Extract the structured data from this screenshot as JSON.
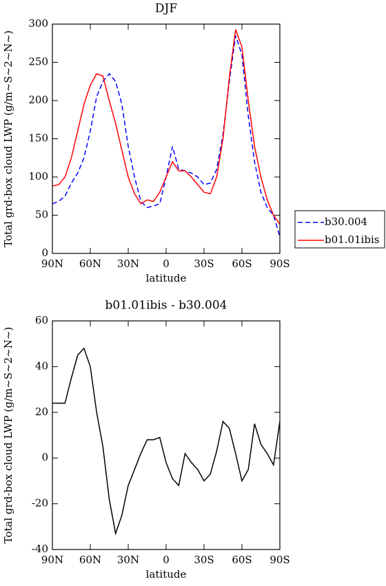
{
  "chart_data": [
    {
      "type": "line",
      "title": "DJF",
      "xlabel": "latitude",
      "ylabel": "Total grd-box cloud LWP (g/m~S~2~N~)",
      "x": [
        90,
        85,
        80,
        75,
        70,
        65,
        60,
        55,
        50,
        45,
        40,
        35,
        30,
        25,
        20,
        15,
        10,
        5,
        0,
        -5,
        -10,
        -15,
        -20,
        -25,
        -30,
        -35,
        -40,
        -45,
        -50,
        -55,
        -60,
        -65,
        -70,
        -75,
        -80,
        -85,
        -90
      ],
      "xlim": [
        90,
        -90
      ],
      "xticks": [
        {
          "value": 90,
          "label": "90N"
        },
        {
          "value": 60,
          "label": "60N"
        },
        {
          "value": 30,
          "label": "30N"
        },
        0,
        {
          "value": -30,
          "label": "30S"
        },
        {
          "value": -60,
          "label": "60S"
        },
        {
          "value": -90,
          "label": "90S"
        }
      ],
      "ylim": [
        0,
        300
      ],
      "yticks": [
        0,
        50,
        100,
        150,
        200,
        250,
        300
      ],
      "series": [
        {
          "name": "b30.004",
          "color": "#0000ff",
          "dash": true,
          "values": [
            65,
            68,
            75,
            92,
            105,
            125,
            160,
            205,
            225,
            235,
            225,
            195,
            140,
            100,
            68,
            60,
            62,
            65,
            100,
            140,
            110,
            108,
            105,
            100,
            90,
            92,
            110,
            155,
            225,
            285,
            260,
            180,
            120,
            80,
            60,
            50,
            22
          ]
        },
        {
          "name": "b01.01ibis",
          "color": "#ff0000",
          "dash": false,
          "values": [
            88,
            90,
            100,
            125,
            160,
            195,
            220,
            235,
            232,
            200,
            170,
            135,
            100,
            78,
            65,
            70,
            68,
            80,
            100,
            120,
            108,
            108,
            100,
            90,
            80,
            78,
            100,
            150,
            230,
            293,
            270,
            200,
            140,
            100,
            70,
            50,
            38
          ]
        }
      ]
    },
    {
      "type": "line",
      "title": "b01.01ibis - b30.004",
      "xlabel": "latitude",
      "ylabel": "Total grd-box cloud LWP (g/m~S~2~N~)",
      "x": [
        90,
        85,
        80,
        75,
        70,
        65,
        60,
        55,
        50,
        45,
        40,
        35,
        30,
        25,
        20,
        15,
        10,
        5,
        0,
        -5,
        -10,
        -15,
        -20,
        -25,
        -30,
        -35,
        -40,
        -45,
        -50,
        -55,
        -60,
        -65,
        -70,
        -75,
        -80,
        -85,
        -90
      ],
      "xlim": [
        90,
        -90
      ],
      "xticks": [
        {
          "value": 90,
          "label": "90N"
        },
        {
          "value": 60,
          "label": "60N"
        },
        {
          "value": 30,
          "label": "30N"
        },
        0,
        {
          "value": -30,
          "label": "30S"
        },
        {
          "value": -60,
          "label": "60S"
        },
        {
          "value": -90,
          "label": "90S"
        }
      ],
      "ylim": [
        -40,
        60
      ],
      "yticks": [
        -40,
        -20,
        0,
        20,
        40,
        60
      ],
      "series": [
        {
          "color": "#000000",
          "dash": false,
          "values": [
            24,
            24,
            24,
            35,
            45,
            48,
            40,
            20,
            5,
            -18,
            -33,
            -25,
            -12,
            -5,
            2,
            8,
            8,
            9,
            -2,
            -9,
            -12,
            2,
            -2,
            -5,
            -10,
            -7,
            3,
            16,
            13,
            2,
            -10,
            -5,
            15,
            6,
            2,
            -3,
            16
          ]
        }
      ]
    }
  ]
}
